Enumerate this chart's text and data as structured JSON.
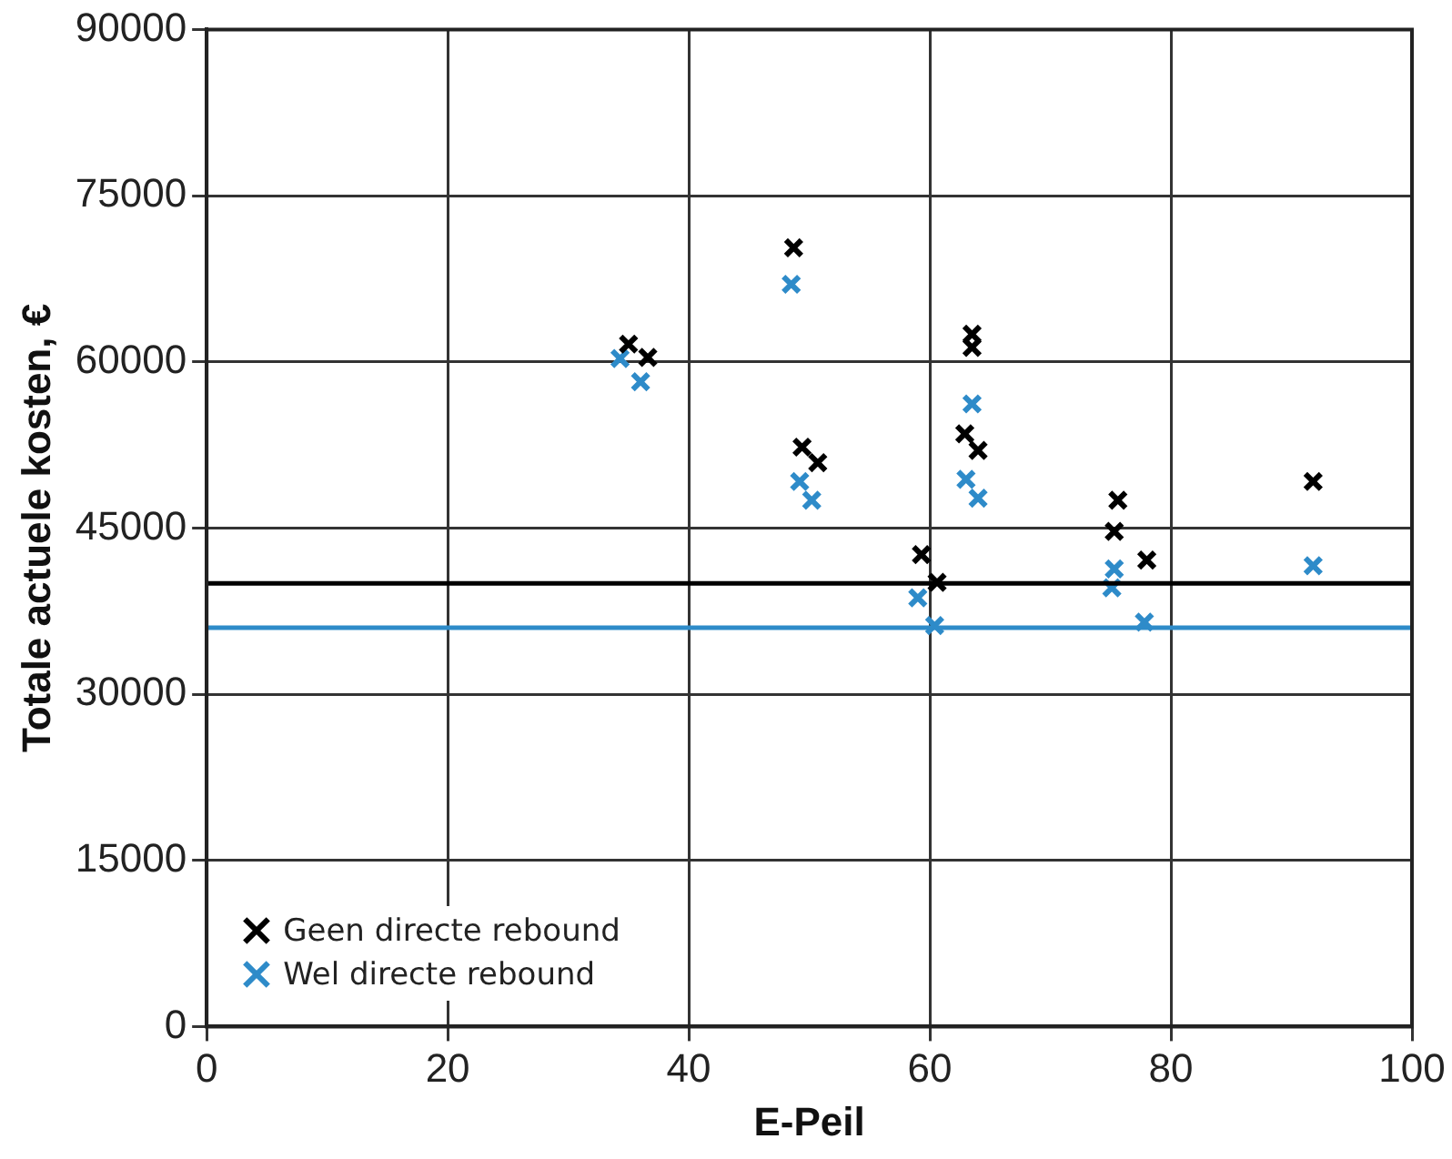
{
  "chart_data": {
    "type": "scatter",
    "xlabel": "E-Peil",
    "ylabel": "Totale actuele kosten, €",
    "series": [
      {
        "name": "Geen directe rebound",
        "color": "#000000",
        "x": [
          35,
          36.6,
          48.7,
          49.4,
          50.7,
          63.5,
          63.5,
          62.9,
          64,
          59.3,
          60.6,
          75.6,
          75.3,
          78,
          91.8
        ],
        "values": [
          61600,
          60400,
          70300,
          52300,
          50900,
          62500,
          61300,
          53500,
          52000,
          42600,
          40100,
          47500,
          44700,
          42100,
          49200
        ]
      },
      {
        "name": "Wel directe rebound",
        "color": "#2e8bc9",
        "x": [
          34.3,
          36,
          48.5,
          49.2,
          50.2,
          63.5,
          63,
          64,
          59,
          60.4,
          75.3,
          75.1,
          77.8,
          91.8
        ],
        "values": [
          60300,
          58200,
          67000,
          49200,
          47500,
          56200,
          49400,
          47700,
          38700,
          36200,
          41300,
          39600,
          36500,
          41600
        ]
      }
    ],
    "ref_lines": [
      {
        "axis": "y",
        "value": 40000,
        "color": "#000000"
      },
      {
        "axis": "y",
        "value": 36000,
        "color": "#2e8bc9"
      }
    ],
    "xlim": [
      0,
      100
    ],
    "xticks": [
      0,
      20,
      40,
      60,
      80,
      100
    ],
    "ylim": [
      0,
      90000
    ],
    "yticks": [
      0,
      15000,
      30000,
      45000,
      60000,
      75000,
      90000
    ],
    "grid": true,
    "legend": "bottom left",
    "marker": "cross"
  }
}
